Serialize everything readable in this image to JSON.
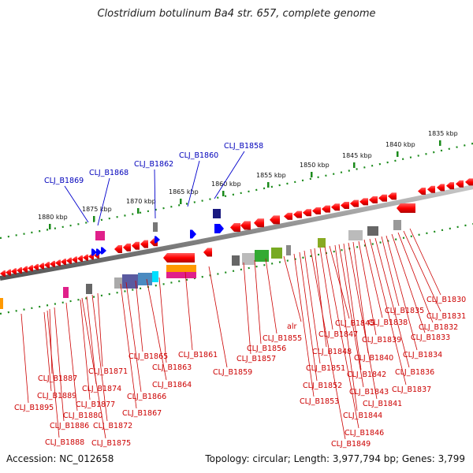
{
  "title": "Clostridium botulinum Ba4 str. 657, complete genome",
  "footer": {
    "accession": "Accession: NC_012658",
    "topology": "Topology: circular; Length: 3,977,794 bp; Genes: 3,799"
  },
  "colors": {
    "forward_gene": "#ff0000",
    "backbone": "#808080",
    "tick": "#1a8a1a",
    "label_line_red": "#cc0000",
    "label_line_blue": "#0000cc"
  },
  "kbp_ticks": [
    {
      "label": "1880 kbp"
    },
    {
      "label": "1875 kbp"
    },
    {
      "label": "1870 kbp"
    },
    {
      "label": "1865 kbp"
    },
    {
      "label": "1860 kbp"
    },
    {
      "label": "1855 kbp"
    },
    {
      "label": "1850 kbp"
    },
    {
      "label": "1845 kbp"
    },
    {
      "label": "1840 kbp"
    },
    {
      "label": "1835 kbp"
    }
  ],
  "upper_labels": [
    "CLJ_B1869",
    "CLJ_B1868",
    "CLJ_B1862",
    "CLJ_B1860",
    "CLJ_B1858"
  ],
  "lower_labels": [
    "CLJ_B1830",
    "CLJ_B1831",
    "CLJ_B1832",
    "CLJ_B1833",
    "CLJ_B1834",
    "CLJ_B1835",
    "CLJ_B1836",
    "CLJ_B1837",
    "CLJ_B1838",
    "CLJ_B1839",
    "CLJ_B1840",
    "CLJ_B1841",
    "CLJ_B1842",
    "CLJ_B1843",
    "CLJ_B1844",
    "CLJ_B1845",
    "CLJ_B1846",
    "CLJ_B1847",
    "CLJ_B1848",
    "CLJ_B1849",
    "CLJ_B1851",
    "CLJ_B1852",
    "CLJ_B1853",
    "alr",
    "CLJ_B1855",
    "CLJ_B1856",
    "CLJ_B1857",
    "CLJ_B1859",
    "CLJ_B1861",
    "CLJ_B1863",
    "CLJ_B1864",
    "CLJ_B1865",
    "CLJ_B1866",
    "CLJ_B1867",
    "CLJ_B1871",
    "CLJ_B1872",
    "CLJ_B1874",
    "CLJ_B1875",
    "CLJ_B1877",
    "CLJ_B1880",
    "CLJ_B1886",
    "CLJ_B1887",
    "CLJ_B1888",
    "CLJ_B1889",
    "CLJ_B1895"
  ]
}
